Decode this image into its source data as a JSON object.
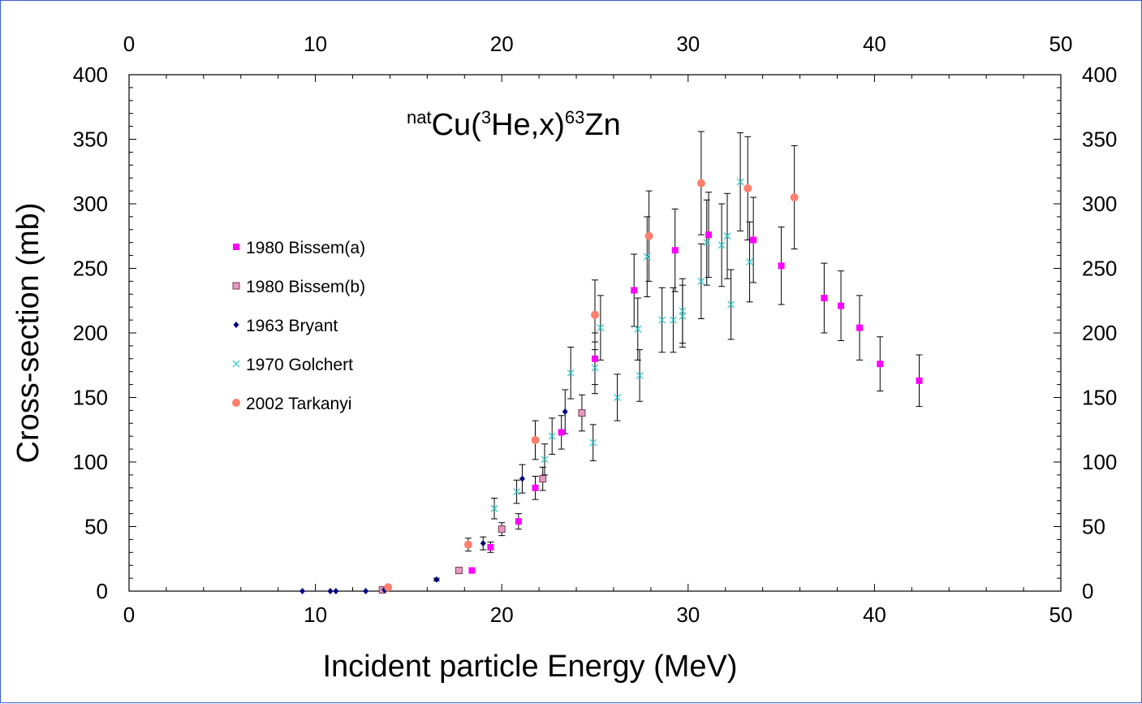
{
  "chart_data": {
    "type": "scatter",
    "title": {
      "parts": [
        {
          "text": "nat",
          "sup": true
        },
        {
          "text": "Cu(",
          "sup": false
        },
        {
          "text": "3",
          "sup": true
        },
        {
          "text": "He,x)",
          "sup": false
        },
        {
          "text": "63",
          "sup": true
        },
        {
          "text": "Zn",
          "sup": false
        }
      ]
    },
    "xlabel": "Incident particle Energy (MeV)",
    "ylabel": "Cross-section (mb)",
    "xlim": [
      0,
      50
    ],
    "ylim": [
      0,
      400
    ],
    "xticks": [
      "0",
      "10",
      "20",
      "30",
      "40",
      "50"
    ],
    "yticks": [
      "0",
      "50",
      "100",
      "150",
      "200",
      "250",
      "300",
      "350",
      "400"
    ],
    "secondary_axes": true,
    "grid": false,
    "legend_position": "left",
    "series": [
      {
        "name": "1980 Bissem(a)",
        "marker": "square",
        "color": "#ff00ff",
        "points": [
          [
            18.4,
            16,
            2
          ],
          [
            19.4,
            34,
            4
          ],
          [
            20.9,
            54,
            6
          ],
          [
            21.8,
            80,
            9
          ],
          [
            23.2,
            123,
            13
          ],
          [
            25.0,
            180,
            20
          ],
          [
            27.1,
            233,
            28
          ],
          [
            29.3,
            264,
            32
          ],
          [
            31.1,
            276,
            33
          ],
          [
            33.5,
            272,
            33
          ],
          [
            35.0,
            252,
            30
          ],
          [
            37.3,
            227,
            27
          ],
          [
            38.2,
            221,
            27
          ],
          [
            39.2,
            204,
            25
          ],
          [
            40.3,
            176,
            21
          ],
          [
            42.4,
            163,
            20
          ]
        ]
      },
      {
        "name": "1980 Bissem(b)",
        "marker": "square-outline",
        "color": "#cc7799",
        "points": [
          [
            13.6,
            1,
            0
          ],
          [
            17.7,
            16,
            2
          ],
          [
            20.0,
            48,
            5
          ],
          [
            22.2,
            87,
            9
          ],
          [
            24.3,
            138,
            14
          ]
        ]
      },
      {
        "name": "1963 Bryant",
        "marker": "diamond",
        "color": "#000080",
        "points": [
          [
            9.3,
            0,
            0
          ],
          [
            10.8,
            0,
            0
          ],
          [
            11.1,
            0,
            0
          ],
          [
            12.7,
            0,
            0
          ],
          [
            13.7,
            1,
            0
          ],
          [
            16.5,
            9,
            1
          ],
          [
            19.0,
            37,
            5
          ],
          [
            21.1,
            87,
            11
          ],
          [
            23.4,
            139,
            17
          ]
        ]
      },
      {
        "name": "1970 Golchert",
        "marker": "cross",
        "color": "#33cccc",
        "points": [
          [
            19.6,
            64,
            8
          ],
          [
            20.8,
            77,
            9
          ],
          [
            22.3,
            102,
            12
          ],
          [
            22.7,
            120,
            14
          ],
          [
            23.7,
            169,
            20
          ],
          [
            24.9,
            115,
            14
          ],
          [
            25.0,
            173,
            20
          ],
          [
            25.3,
            204,
            25
          ],
          [
            26.2,
            150,
            18
          ],
          [
            27.3,
            203,
            24
          ],
          [
            27.4,
            167,
            20
          ],
          [
            27.8,
            259,
            31
          ],
          [
            28.6,
            210,
            25
          ],
          [
            29.2,
            210,
            25
          ],
          [
            29.7,
            217,
            25
          ],
          [
            29.7,
            213,
            24
          ],
          [
            30.7,
            240,
            29
          ],
          [
            31.0,
            270,
            33
          ],
          [
            31.8,
            268,
            32
          ],
          [
            32.1,
            275,
            33
          ],
          [
            32.3,
            222,
            27
          ],
          [
            32.8,
            317,
            38
          ],
          [
            33.3,
            255,
            31
          ]
        ]
      },
      {
        "name": "2002 Tarkanyi",
        "marker": "circle",
        "color": "#ff7f6f",
        "points": [
          [
            13.9,
            3,
            0
          ],
          [
            18.2,
            36,
            5
          ],
          [
            21.8,
            117,
            15
          ],
          [
            25.0,
            214,
            27
          ],
          [
            27.9,
            275,
            35
          ],
          [
            30.7,
            316,
            40
          ],
          [
            33.2,
            312,
            40
          ],
          [
            35.7,
            305,
            40
          ]
        ]
      }
    ]
  }
}
